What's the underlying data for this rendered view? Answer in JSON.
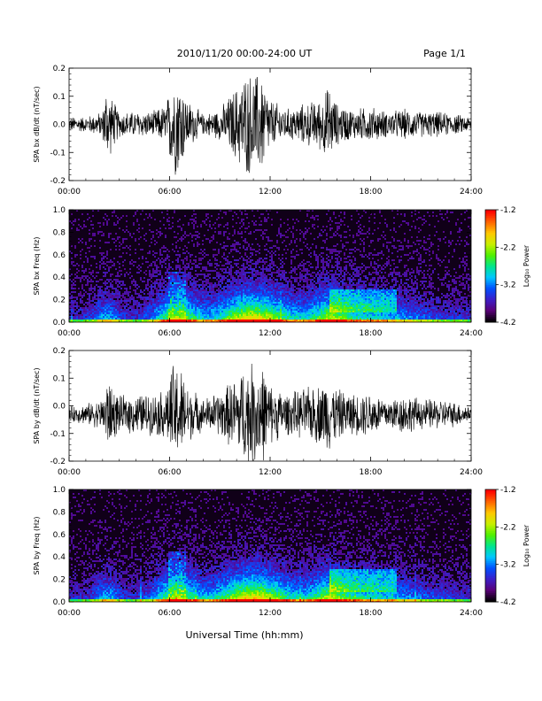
{
  "header": {
    "title": "2010/11/20  00:00-24:00 UT",
    "page": "Page 1/1"
  },
  "xlabel": "Universal Time (hh:mm)",
  "chart_data": [
    {
      "type": "line",
      "ylabel": "SPA bx dB/dt (nT/sec)",
      "xlim": [
        0,
        24
      ],
      "ylim": [
        -0.2,
        0.2
      ],
      "xticks": [
        "00:00",
        "06:00",
        "12:00",
        "18:00",
        "24:00"
      ],
      "yticks": [
        "-0.2",
        "-0.1",
        "0.0",
        "0.1",
        "0.2"
      ],
      "series": [
        {
          "color": "#000000",
          "baseline": 0.0,
          "amplitude_envelope": {
            "x": [
              0,
              1,
              2,
              2.2,
              3,
              4,
              5,
              5.8,
              6.2,
              6.6,
              7,
              8,
              9,
              10,
              10.5,
              11,
              11.5,
              12,
              13,
              14,
              15,
              15.5,
              16,
              17,
              18,
              19,
              20,
              21,
              22,
              23,
              24
            ],
            "y": [
              0.03,
              0.03,
              0.05,
              0.15,
              0.05,
              0.05,
              0.05,
              0.08,
              0.2,
              0.2,
              0.1,
              0.04,
              0.06,
              0.15,
              0.2,
              0.2,
              0.2,
              0.1,
              0.06,
              0.08,
              0.1,
              0.15,
              0.08,
              0.06,
              0.07,
              0.05,
              0.06,
              0.05,
              0.05,
              0.04,
              0.03
            ]
          }
        }
      ]
    },
    {
      "type": "heatmap",
      "ylabel": "SPA bx Freq (Hz)",
      "xlim": [
        0,
        24
      ],
      "ylim": [
        0,
        1
      ],
      "xticks": [
        "00:00",
        "06:00",
        "12:00",
        "18:00",
        "24:00"
      ],
      "yticks": [
        "0.0",
        "0.2",
        "0.4",
        "0.6",
        "0.8",
        "1.0"
      ],
      "colorbar": {
        "label": "Log₁₀ Power",
        "range": [
          -4.2,
          -1.2
        ],
        "ticks": [
          "-1.2",
          "-2.2",
          "-3.2",
          "-4.2"
        ],
        "colors": [
          "#000000",
          "#5a0078",
          "#3c1ec8",
          "#0050ff",
          "#00c8ff",
          "#00e68c",
          "#50f000",
          "#c8f000",
          "#ffc800",
          "#ff6400",
          "#ff0000"
        ]
      }
    },
    {
      "type": "line",
      "ylabel": "SPA by dB/dt (nT/sec)",
      "xlim": [
        0,
        24
      ],
      "ylim": [
        -0.2,
        0.2
      ],
      "xticks": [
        "00:00",
        "06:00",
        "12:00",
        "18:00",
        "24:00"
      ],
      "yticks": [
        "-0.2",
        "-0.1",
        "0.0",
        "0.1",
        "0.2"
      ],
      "series": [
        {
          "color": "#000000",
          "baseline": -0.03,
          "amplitude_envelope": {
            "x": [
              0,
              1,
              2,
              2.2,
              3,
              4,
              5,
              5.8,
              6.2,
              6.6,
              7,
              8,
              9,
              10,
              10.5,
              11,
              11.5,
              12,
              13,
              14,
              15,
              15.5,
              16,
              17,
              18,
              19,
              20,
              21,
              22,
              23,
              24
            ],
            "y": [
              0.03,
              0.04,
              0.06,
              0.15,
              0.07,
              0.08,
              0.08,
              0.1,
              0.2,
              0.2,
              0.12,
              0.06,
              0.09,
              0.15,
              0.2,
              0.2,
              0.2,
              0.12,
              0.08,
              0.1,
              0.12,
              0.15,
              0.1,
              0.08,
              0.09,
              0.06,
              0.08,
              0.06,
              0.06,
              0.05,
              0.03
            ]
          }
        }
      ]
    },
    {
      "type": "heatmap",
      "ylabel": "SPA by Freq (Hz)",
      "xlim": [
        0,
        24
      ],
      "ylim": [
        0,
        1
      ],
      "xticks": [
        "00:00",
        "06:00",
        "12:00",
        "18:00",
        "24:00"
      ],
      "yticks": [
        "0.0",
        "0.2",
        "0.4",
        "0.6",
        "0.8",
        "1.0"
      ],
      "colorbar": {
        "label": "Log₁₀ Power",
        "range": [
          -4.2,
          -1.2
        ],
        "ticks": [
          "-1.2",
          "-2.2",
          "-3.2",
          "-4.2"
        ],
        "colors": [
          "#000000",
          "#5a0078",
          "#3c1ec8",
          "#0050ff",
          "#00c8ff",
          "#00e68c",
          "#50f000",
          "#c8f000",
          "#ffc800",
          "#ff6400",
          "#ff0000"
        ]
      }
    }
  ]
}
